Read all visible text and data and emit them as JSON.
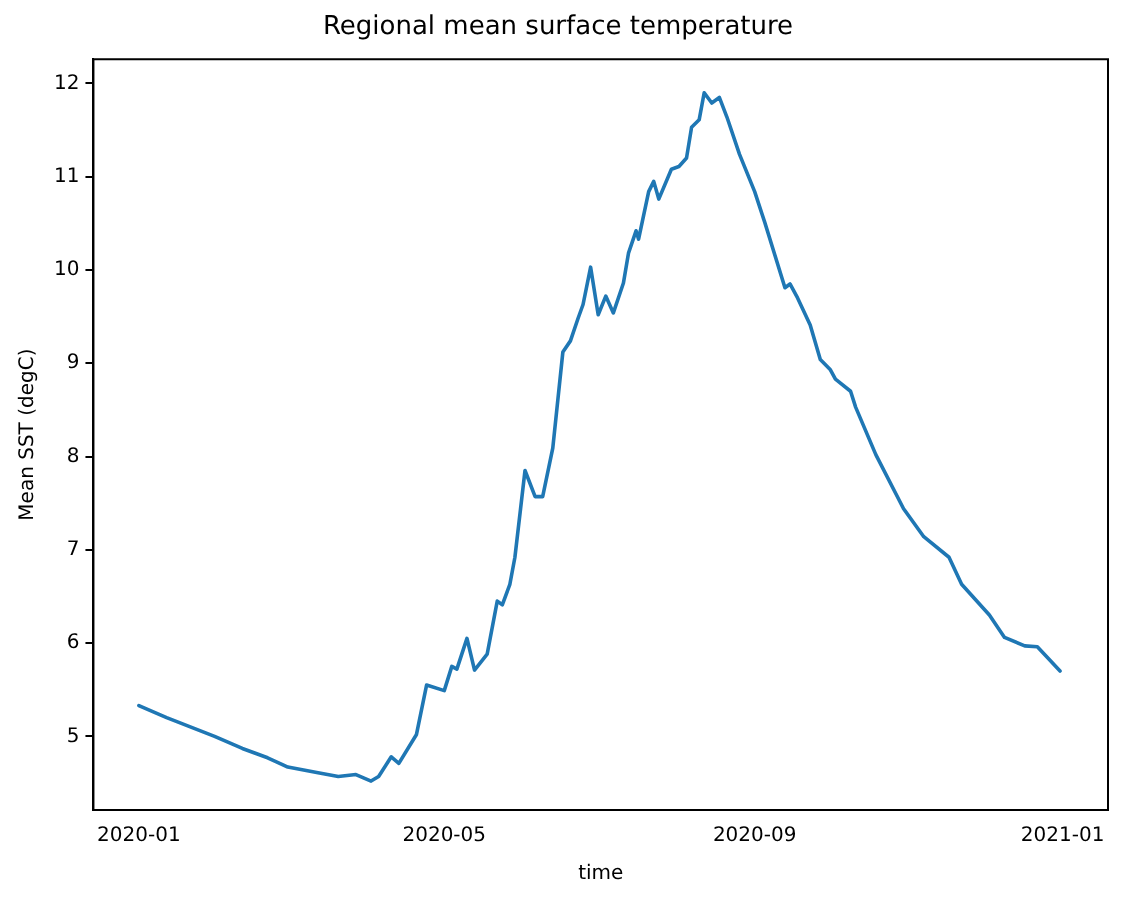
{
  "chart_data": {
    "type": "line",
    "title": "Regional mean surface temperature",
    "xlabel": "time",
    "ylabel": "Mean SST (degC)",
    "x": [
      "2020-01-01",
      "2020-01-12",
      "2020-01-31",
      "2020-02-11",
      "2020-02-21",
      "2020-02-29",
      "2020-03-12",
      "2020-03-20",
      "2020-03-27",
      "2020-04-02",
      "2020-04-05",
      "2020-04-10",
      "2020-04-13",
      "2020-04-20",
      "2020-04-24",
      "2020-05-01",
      "2020-05-04",
      "2020-05-06",
      "2020-05-10",
      "2020-05-13",
      "2020-05-18",
      "2020-05-22",
      "2020-05-24",
      "2020-05-27",
      "2020-05-29",
      "2020-06-02",
      "2020-06-06",
      "2020-06-09",
      "2020-06-13",
      "2020-06-17",
      "2020-06-20",
      "2020-06-23",
      "2020-06-25",
      "2020-06-28",
      "2020-07-01",
      "2020-07-04",
      "2020-07-07",
      "2020-07-11",
      "2020-07-13",
      "2020-07-16",
      "2020-07-17",
      "2020-07-21",
      "2020-07-23",
      "2020-07-25",
      "2020-07-30",
      "2020-08-02",
      "2020-08-05",
      "2020-08-07",
      "2020-08-10",
      "2020-08-12",
      "2020-08-15",
      "2020-08-18",
      "2020-08-21",
      "2020-08-26",
      "2020-09-01",
      "2020-09-05",
      "2020-09-13",
      "2020-09-15",
      "2020-09-18",
      "2020-09-23",
      "2020-09-27",
      "2020-10-01",
      "2020-10-03",
      "2020-10-09",
      "2020-10-11",
      "2020-10-19",
      "2020-10-30",
      "2020-11-07",
      "2020-11-17",
      "2020-11-22",
      "2020-12-03",
      "2020-12-09",
      "2020-12-17",
      "2020-12-22",
      "2020-12-31"
    ],
    "series": [
      {
        "color": "#1f77b4",
        "values": [
          5.33,
          5.2,
          5.0,
          4.87,
          4.77,
          4.67,
          4.61,
          4.57,
          4.59,
          4.52,
          4.57,
          4.78,
          4.71,
          5.02,
          5.55,
          5.49,
          5.75,
          5.72,
          6.05,
          5.71,
          5.88,
          6.45,
          6.41,
          6.63,
          6.92,
          7.85,
          7.57,
          7.57,
          8.09,
          9.12,
          9.24,
          9.48,
          9.63,
          10.03,
          9.52,
          9.72,
          9.54,
          9.86,
          10.18,
          10.42,
          10.33,
          10.84,
          10.95,
          10.76,
          11.08,
          11.11,
          11.2,
          11.53,
          11.61,
          11.9,
          11.79,
          11.85,
          11.64,
          11.24,
          10.84,
          10.51,
          9.81,
          9.85,
          9.7,
          9.41,
          9.04,
          8.93,
          8.83,
          8.7,
          8.53,
          8.02,
          7.44,
          7.14,
          6.92,
          6.63,
          6.3,
          6.06,
          5.97,
          5.96,
          5.7
        ]
      }
    ],
    "xlim": [
      "2019-12-14",
      "2021-01-19"
    ],
    "xticks": [
      "2020-01",
      "2020-05",
      "2020-09",
      "2021-01"
    ],
    "ylim": [
      4.21,
      12.26
    ],
    "yticks": [
      5,
      6,
      7,
      8,
      9,
      10,
      11,
      12
    ],
    "grid": false,
    "legend": false,
    "marker": "none",
    "line_style": "solid"
  }
}
